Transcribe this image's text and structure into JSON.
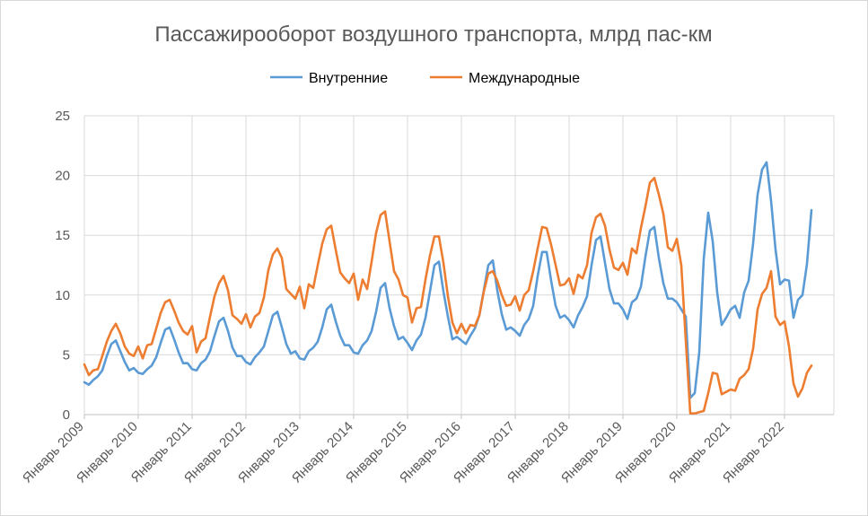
{
  "chart_data": {
    "type": "line",
    "title": "Пассажирооборот воздушного транспорта, млрд пас-км",
    "xlabel": "",
    "ylabel": "",
    "ylim": [
      0,
      25
    ],
    "yticks": [
      0,
      5,
      10,
      15,
      20,
      25
    ],
    "grid": true,
    "legend_position": "top",
    "x_tick_labels": [
      "Январь 2009",
      "Январь 2010",
      "Январь 2011",
      "Январь 2012",
      "Январь 2013",
      "Январь 2014",
      "Январь 2015",
      "Январь 2016",
      "Январь 2017",
      "Январь 2018",
      "Январь 2019",
      "Январь 2020",
      "Январь 2021",
      "Январь 2022"
    ],
    "x_start": "2009-01",
    "series": [
      {
        "name": "Внутренние",
        "color": "#5b9bd5",
        "values": [
          2.7,
          2.5,
          2.9,
          3.2,
          3.7,
          4.9,
          5.9,
          6.2,
          5.3,
          4.4,
          3.7,
          3.9,
          3.5,
          3.4,
          3.8,
          4.1,
          4.8,
          6.0,
          7.1,
          7.3,
          6.3,
          5.2,
          4.3,
          4.3,
          3.8,
          3.7,
          4.3,
          4.6,
          5.3,
          6.6,
          7.8,
          8.1,
          7.0,
          5.6,
          4.9,
          4.9,
          4.4,
          4.2,
          4.8,
          5.2,
          5.7,
          7.0,
          8.3,
          8.6,
          7.3,
          5.9,
          5.1,
          5.3,
          4.7,
          4.6,
          5.3,
          5.6,
          6.1,
          7.3,
          8.8,
          9.2,
          7.8,
          6.6,
          5.8,
          5.8,
          5.2,
          5.1,
          5.8,
          6.2,
          7.0,
          8.6,
          10.6,
          11.0,
          8.9,
          7.4,
          6.3,
          6.5,
          6.0,
          5.4,
          6.2,
          6.7,
          8.1,
          10.3,
          12.5,
          12.8,
          10.3,
          8.2,
          6.3,
          6.5,
          6.2,
          5.9,
          6.6,
          7.2,
          8.3,
          10.4,
          12.5,
          12.9,
          10.4,
          8.4,
          7.1,
          7.3,
          7.0,
          6.6,
          7.5,
          8.0,
          9.1,
          11.6,
          13.6,
          13.6,
          11.2,
          9.1,
          8.1,
          8.3,
          7.9,
          7.3,
          8.3,
          9.0,
          9.9,
          12.5,
          14.6,
          14.9,
          12.7,
          10.5,
          9.3,
          9.3,
          8.8,
          8.0,
          9.4,
          9.7,
          10.7,
          13.2,
          15.4,
          15.7,
          13.1,
          11.0,
          9.7,
          9.7,
          9.4,
          8.8,
          8.2,
          1.4,
          1.8,
          5.2,
          13.0,
          16.9,
          14.5,
          10.2,
          7.5,
          8.1,
          8.8,
          9.1,
          8.1,
          10.2,
          11.2,
          14.3,
          18.4,
          20.5,
          21.1,
          17.9,
          13.8,
          10.9,
          11.3,
          11.2,
          8.1,
          9.6,
          10.0,
          12.6,
          17.1
        ]
      },
      {
        "name": "Международные",
        "color": "#ed7d31",
        "values": [
          4.2,
          3.3,
          3.7,
          3.8,
          4.9,
          6.1,
          7.0,
          7.6,
          6.8,
          5.7,
          5.1,
          4.9,
          5.7,
          4.7,
          5.8,
          5.9,
          7.2,
          8.5,
          9.4,
          9.6,
          8.7,
          7.7,
          7.0,
          6.7,
          7.4,
          5.2,
          6.1,
          6.4,
          8.2,
          9.9,
          11.0,
          11.6,
          10.4,
          8.3,
          8.0,
          7.6,
          8.4,
          7.3,
          8.2,
          8.5,
          9.8,
          12.1,
          13.4,
          13.9,
          13.1,
          10.5,
          10.1,
          9.7,
          10.7,
          8.9,
          10.9,
          10.6,
          12.5,
          14.3,
          15.5,
          15.8,
          13.8,
          11.9,
          11.4,
          11.0,
          11.8,
          9.6,
          11.3,
          10.5,
          12.8,
          15.2,
          16.7,
          17.0,
          14.5,
          12.0,
          11.3,
          10.0,
          9.8,
          7.7,
          8.9,
          9.0,
          11.3,
          13.3,
          14.9,
          14.9,
          12.7,
          9.9,
          7.7,
          6.8,
          7.6,
          6.8,
          7.5,
          7.4,
          8.3,
          10.3,
          11.8,
          12.0,
          11.2,
          10.0,
          9.1,
          9.2,
          9.9,
          8.7,
          10.0,
          10.4,
          12.0,
          13.9,
          15.7,
          15.6,
          14.2,
          12.5,
          10.8,
          10.9,
          11.4,
          10.1,
          11.7,
          11.4,
          12.5,
          15.2,
          16.5,
          16.8,
          15.8,
          13.8,
          12.3,
          12.1,
          12.7,
          11.7,
          13.9,
          13.5,
          15.6,
          17.4,
          19.4,
          19.8,
          18.4,
          16.8,
          14.0,
          13.7,
          14.7,
          12.5,
          6.2,
          0.1,
          0.1,
          0.2,
          0.3,
          1.8,
          3.5,
          3.4,
          1.7,
          1.9,
          2.1,
          2.0,
          3.0,
          3.3,
          3.8,
          5.5,
          8.8,
          10.1,
          10.6,
          12.0,
          8.2,
          7.5,
          7.8,
          5.7,
          2.6,
          1.5,
          2.2,
          3.5,
          4.1
        ]
      }
    ]
  }
}
